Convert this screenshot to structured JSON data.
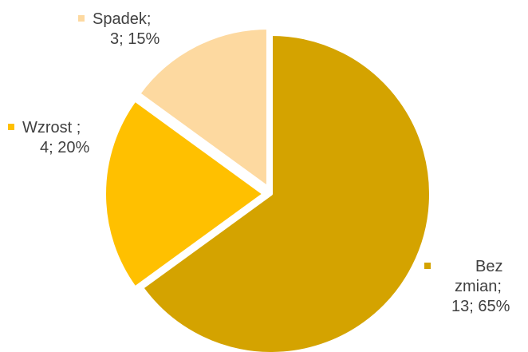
{
  "chart_data": {
    "type": "pie",
    "slices": [
      {
        "name": "Bez zmian",
        "value": 13,
        "percent": 65,
        "color": "#D4A300",
        "label_lines": [
          "Bez",
          "zmian;",
          "13; 65%"
        ]
      },
      {
        "name": "Wzrost ",
        "value": 4,
        "percent": 20,
        "color": "#FFC000",
        "label_lines": [
          "Wzrost ;",
          "4; 20%"
        ]
      },
      {
        "name": "Spadek",
        "value": 3,
        "percent": 15,
        "color": "#FDD9A0",
        "label_lines": [
          "Spadek;",
          "3; 15%"
        ]
      }
    ]
  }
}
